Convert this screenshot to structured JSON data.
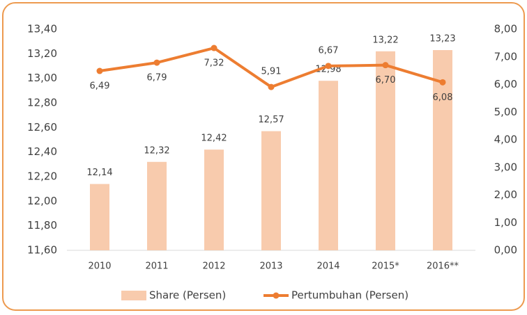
{
  "chart_data": {
    "type": "bar",
    "categories": [
      "2010",
      "2011",
      "2012",
      "2013",
      "2014",
      "2015*",
      "2016**"
    ],
    "series": [
      {
        "name": "Share (Persen)",
        "type": "bar",
        "color": "#f8cbad",
        "values": [
          12.14,
          12.32,
          12.42,
          12.57,
          12.98,
          13.22,
          13.23
        ],
        "value_labels": [
          "12,14",
          "12,32",
          "12,42",
          "12,57",
          "12,98",
          "13,22",
          "13,23"
        ]
      },
      {
        "name": "Pertumbuhan (Persen)",
        "type": "line",
        "axis": "y2",
        "color": "#ed7d31",
        "values": [
          6.49,
          6.79,
          7.32,
          5.91,
          6.67,
          6.7,
          6.08
        ],
        "value_labels": [
          "6,49",
          "6,79",
          "7,32",
          "5,91",
          "6,67",
          "6,70",
          "6,08"
        ]
      }
    ],
    "ylim": [
      11.6,
      13.4
    ],
    "yticks": [
      {
        "value": 11.6,
        "label": "11,60"
      },
      {
        "value": 11.8,
        "label": "11,80"
      },
      {
        "value": 12.0,
        "label": "12,00"
      },
      {
        "value": 12.2,
        "label": "12,20"
      },
      {
        "value": 12.4,
        "label": "12,40"
      },
      {
        "value": 12.6,
        "label": "12,60"
      },
      {
        "value": 12.8,
        "label": "12,80"
      },
      {
        "value": 13.0,
        "label": "13,00"
      },
      {
        "value": 13.2,
        "label": "13,20"
      },
      {
        "value": 13.4,
        "label": "13,40"
      }
    ],
    "y2lim": [
      0,
      8
    ],
    "y2ticks": [
      {
        "value": 0,
        "label": "0,00"
      },
      {
        "value": 1,
        "label": "1,00"
      },
      {
        "value": 2,
        "label": "2,00"
      },
      {
        "value": 3,
        "label": "3,00"
      },
      {
        "value": 4,
        "label": "4,00"
      },
      {
        "value": 5,
        "label": "5,00"
      },
      {
        "value": 6,
        "label": "6,00"
      },
      {
        "value": 7,
        "label": "7,00"
      },
      {
        "value": 8,
        "label": "8,00"
      }
    ],
    "legend": "bottom"
  }
}
